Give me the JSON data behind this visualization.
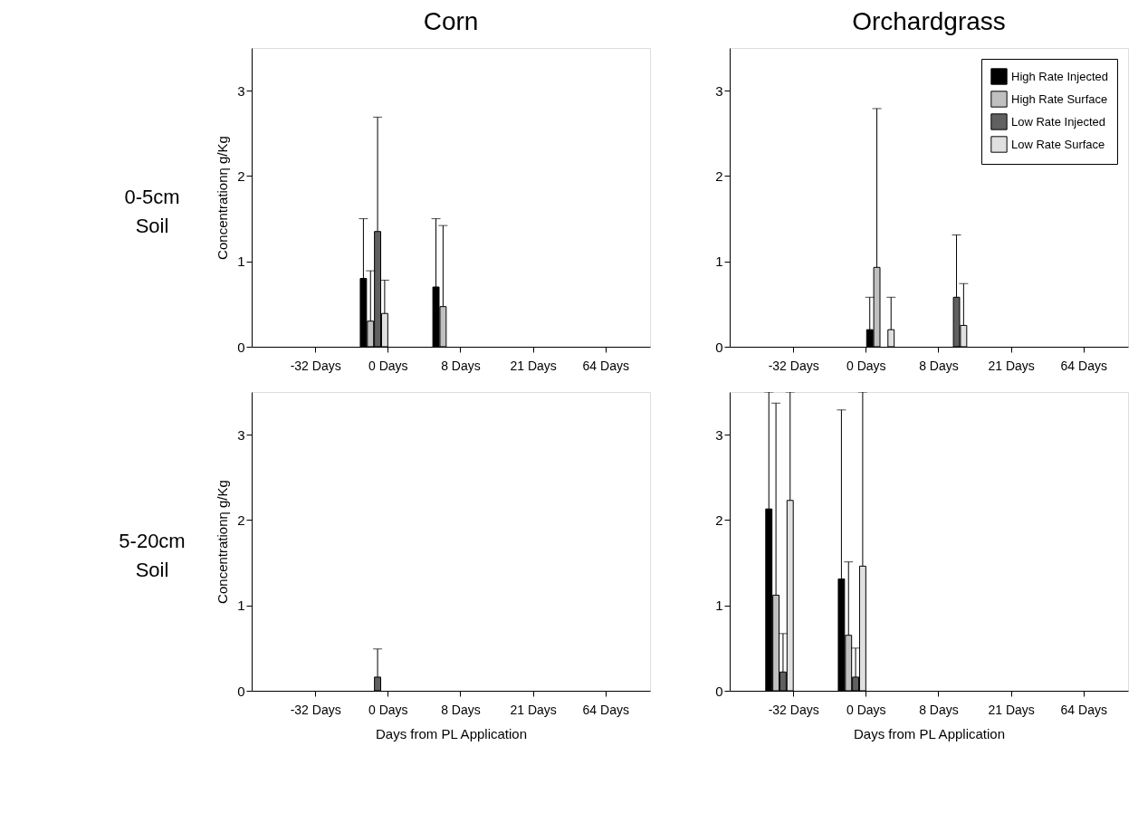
{
  "chart_data": [
    {
      "type": "bar",
      "title": "Corn",
      "ylabel": "Concentrationη g/Kg",
      "annotations": [
        "0-5cm Soil"
      ],
      "categories": [
        "-32 Days",
        "0 Days",
        "8 Days",
        "21 Days",
        "64 Days"
      ],
      "ylim": [
        0,
        3.5
      ],
      "yticks": [
        0,
        1,
        2,
        3
      ],
      "grid": false,
      "legend": false,
      "series": [
        {
          "color": "#000000",
          "values": [
            null,
            0.8,
            0.7,
            null,
            null
          ],
          "errors": [
            null,
            [
              0.8,
              1.5
            ],
            [
              0.7,
              1.5
            ],
            null,
            null
          ]
        },
        {
          "color": "#c0c0c0",
          "values": [
            null,
            0.3,
            0.47,
            null,
            null
          ],
          "errors": [
            null,
            [
              0.3,
              0.89
            ],
            [
              0.47,
              1.42
            ],
            null,
            null
          ]
        },
        {
          "color": "#606060",
          "values": [
            null,
            1.35,
            null,
            null,
            null
          ],
          "errors": [
            null,
            [
              1.35,
              2.69
            ],
            null,
            null,
            null
          ]
        },
        {
          "color": "#e0e0e0",
          "values": [
            null,
            0.39,
            null,
            null,
            null
          ],
          "errors": [
            null,
            [
              0.39,
              0.78
            ],
            null,
            null,
            null
          ]
        }
      ]
    },
    {
      "type": "bar",
      "title": "Orchardgrass",
      "categories": [
        "-32 Days",
        "0 Days",
        "8 Days",
        "21 Days",
        "64 Days"
      ],
      "ylim": [
        0,
        3.5
      ],
      "yticks": [
        0,
        1,
        2,
        3
      ],
      "grid": false,
      "legend": "top right",
      "series": [
        {
          "name": "High Rate Injected",
          "color": "#000000",
          "values": [
            null,
            0.2,
            null,
            null,
            null
          ],
          "errors": [
            null,
            [
              0.2,
              0.58
            ],
            null,
            null,
            null
          ]
        },
        {
          "name": "High Rate Surface",
          "color": "#c0c0c0",
          "values": [
            null,
            0.93,
            null,
            null,
            null
          ],
          "errors": [
            null,
            [
              0.93,
              2.79
            ],
            null,
            null,
            null
          ]
        },
        {
          "name": "Low Rate Injected",
          "color": "#606060",
          "values": [
            null,
            null,
            0.58,
            null,
            null
          ],
          "errors": [
            null,
            null,
            [
              0.58,
              1.31
            ],
            null,
            null
          ]
        },
        {
          "name": "Low Rate Surface",
          "color": "#e0e0e0",
          "values": [
            null,
            0.2,
            0.25,
            null,
            null
          ],
          "errors": [
            null,
            [
              0.2,
              0.58
            ],
            [
              0.25,
              0.74
            ],
            null,
            null
          ]
        }
      ]
    },
    {
      "type": "bar",
      "xlabel": "Days from PL Application",
      "ylabel": "Concentrationη g/Kg",
      "annotations": [
        "5-20cm Soil"
      ],
      "categories": [
        "-32 Days",
        "0 Days",
        "8 Days",
        "21 Days",
        "64 Days"
      ],
      "ylim": [
        0,
        3.5
      ],
      "yticks": [
        0,
        1,
        2,
        3
      ],
      "grid": false,
      "legend": false,
      "series": [
        {
          "color": "#000000",
          "values": [
            null,
            null,
            null,
            null,
            null
          ]
        },
        {
          "color": "#c0c0c0",
          "values": [
            null,
            null,
            null,
            null,
            null
          ]
        },
        {
          "color": "#606060",
          "values": [
            null,
            0.16,
            null,
            null,
            null
          ],
          "errors": [
            null,
            [
              0.16,
              0.49
            ],
            null,
            null,
            null
          ]
        },
        {
          "color": "#e0e0e0",
          "values": [
            null,
            null,
            null,
            null,
            null
          ]
        }
      ]
    },
    {
      "type": "bar",
      "xlabel": "Days from PL Application",
      "categories": [
        "-32 Days",
        "0 Days",
        "8 Days",
        "21 Days",
        "64 Days"
      ],
      "ylim": [
        0,
        3.5
      ],
      "yticks": [
        0,
        1,
        2,
        3
      ],
      "grid": false,
      "legend": false,
      "series": [
        {
          "color": "#000000",
          "values": [
            2.13,
            1.31,
            null,
            null,
            null
          ],
          "errors": [
            [
              2.13,
              3.5
            ],
            [
              1.31,
              3.29
            ],
            null,
            null,
            null
          ]
        },
        {
          "color": "#c0c0c0",
          "values": [
            1.12,
            0.65,
            null,
            null,
            null
          ],
          "errors": [
            [
              1.12,
              3.37
            ],
            [
              0.65,
              1.51
            ],
            null,
            null,
            null
          ]
        },
        {
          "color": "#606060",
          "values": [
            0.22,
            0.16,
            null,
            null,
            null
          ],
          "errors": [
            [
              0.22,
              0.67
            ],
            [
              0.16,
              0.5
            ],
            null,
            null,
            null
          ]
        },
        {
          "color": "#e0e0e0",
          "values": [
            2.23,
            1.46,
            null,
            null,
            null
          ],
          "errors": [
            [
              2.23,
              3.5
            ],
            [
              1.46,
              3.5
            ],
            null,
            null,
            null
          ]
        }
      ]
    }
  ]
}
